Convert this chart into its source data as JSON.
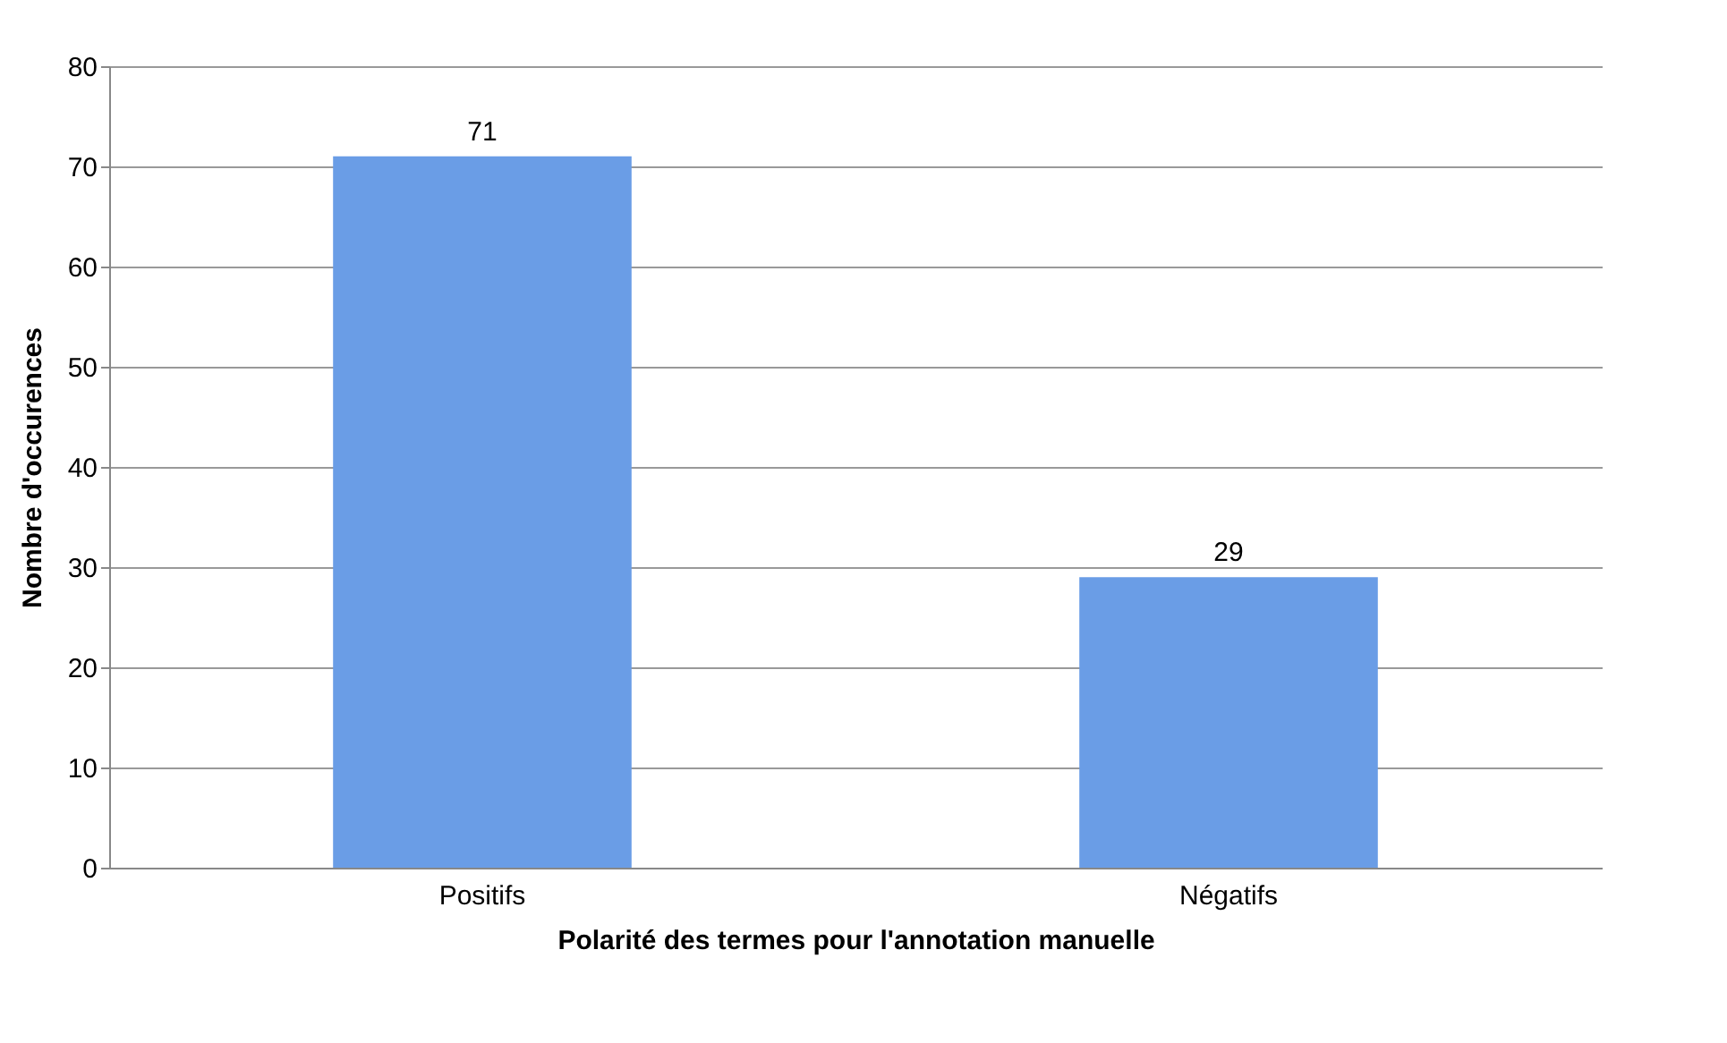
{
  "chart_data": {
    "type": "bar",
    "xlabel": "Polarité des termes pour l'annotation manuelle",
    "ylabel": "Nombre d'occurences",
    "categories": [
      "Positifs",
      "Négatifs"
    ],
    "values": [
      71,
      29
    ],
    "color": "#6a9de6",
    "ylim": [
      0,
      80
    ],
    "yticks": [
      0,
      10,
      20,
      30,
      40,
      50,
      60,
      70,
      80
    ],
    "grid": "y",
    "data_labels": true
  }
}
